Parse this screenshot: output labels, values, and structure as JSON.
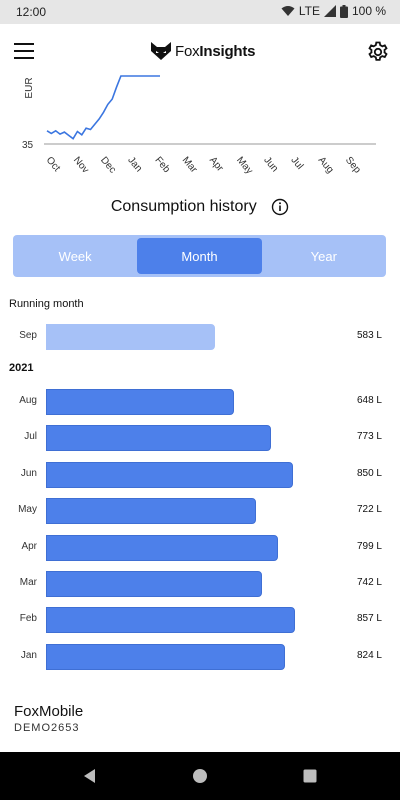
{
  "status_bar": {
    "time": "12:00",
    "network": "LTE",
    "battery": "100 %"
  },
  "app_bar": {
    "logo_prefix": "Fox",
    "logo_bold": "Insights"
  },
  "trend_chart": {
    "chart_data": {
      "type": "line",
      "ylabel": "EUR",
      "y_tick": "35",
      "x_ticks": [
        "Oct",
        "Nov",
        "Dec",
        "Jan",
        "Feb",
        "Mar",
        "Apr",
        "May",
        "Jun",
        "Jul",
        "Aug",
        "Sep"
      ],
      "series": [
        {
          "values": [
            37.0,
            36.6,
            37.0,
            36.5,
            36.8,
            36.3,
            35.8,
            36.9,
            36.4,
            37.4,
            37.2,
            38.0,
            38.8,
            39.8,
            41.0,
            41.8,
            43.6,
            45.8,
            46.2,
            46.1,
            45.6,
            46.2,
            45.8,
            45.9,
            46.0,
            45.7,
            46.2
          ]
        }
      ]
    },
    "color": "#3b76e0"
  },
  "consumption": {
    "title": "Consumption history",
    "tabs": [
      {
        "label": "Week",
        "active": false
      },
      {
        "label": "Month",
        "active": true
      },
      {
        "label": "Year",
        "active": false
      }
    ],
    "running_label": "Running month",
    "running": {
      "month": "Sep",
      "value": "583 L",
      "liters": 583
    },
    "year_label": "2021",
    "chart_data": {
      "type": "bar",
      "orientation": "horizontal",
      "unit": "L",
      "categories": [
        "Aug",
        "Jul",
        "Jun",
        "May",
        "Apr",
        "Mar",
        "Feb",
        "Jan"
      ],
      "values": [
        648,
        773,
        850,
        722,
        799,
        742,
        857,
        824
      ],
      "labels": [
        "648 L",
        "773 L",
        "850 L",
        "722 L",
        "799 L",
        "742 L",
        "857 L",
        "824 L"
      ]
    },
    "bar_color": "#4d80ea",
    "running_color": "#a6c1f7"
  },
  "device": {
    "name": "FoxMobile",
    "code": "DEMO2653"
  }
}
